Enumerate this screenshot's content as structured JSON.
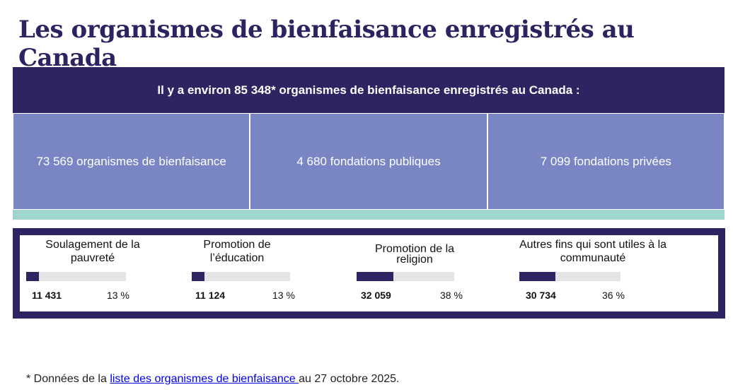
{
  "title": "Les organismes de bienfaisance enregistrés au Canada",
  "banner": "Il y a environ 85 348* organismes de bienfaisance enregistrés au Canada :",
  "boxes": [
    "73 569 organismes de bienfaisance",
    "4 680 fondations publiques",
    "7 099 fondations privées"
  ],
  "stats": [
    {
      "label": "Soulagement de la pauvreté",
      "count": "11 431",
      "percent": "13 %",
      "fraction": 0.13
    },
    {
      "label": "Promotion de l’éducation",
      "count": "11 124",
      "percent": "13 %",
      "fraction": 0.13
    },
    {
      "label": "Promotion de la religion",
      "count": "32 059",
      "percent": "38 %",
      "fraction": 0.38
    },
    {
      "label": "Autres fins qui sont utiles à la communauté",
      "count": "30 734",
      "percent": "36 %",
      "fraction": 0.36
    }
  ],
  "footnote": {
    "prefix": "* Données de la ",
    "link": "liste des organismes de bienfaisance ",
    "suffix": "au 27 octobre 2025."
  },
  "colors": {
    "primary": "#2f2462",
    "box": "#7986c3",
    "strip": "#a0d4cf"
  }
}
